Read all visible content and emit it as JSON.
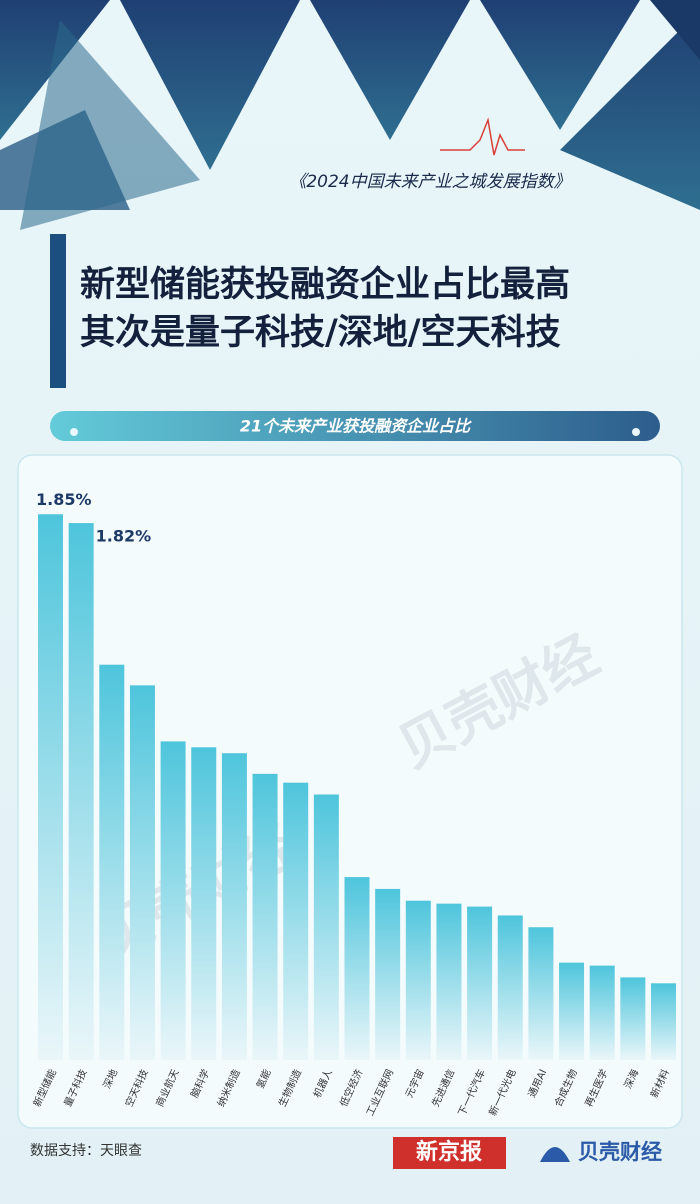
{
  "header": "《2024中国未来产业之城发展指数》",
  "title_lines": [
    "新型储能获投融资企业占比最高",
    "其次是量子科技/深地/空天科技"
  ],
  "chart_data": {
    "type": "bar",
    "title": "21个未来产业获投融资企业占比",
    "categories": [
      "新型储能",
      "量子科技",
      "深地",
      "空天科技",
      "商业航天",
      "脑科学",
      "纳米制造",
      "氢能",
      "生物制造",
      "机器人",
      "低空经济",
      "工业互联网",
      "元宇宙",
      "先进通信",
      "下一代汽车",
      "新一代光电",
      "通用AI",
      "合成生物",
      "再生医学",
      "深海",
      "新材料"
    ],
    "values": [
      1.85,
      1.82,
      1.34,
      1.27,
      1.08,
      1.06,
      1.04,
      0.97,
      0.94,
      0.9,
      0.62,
      0.58,
      0.54,
      0.53,
      0.52,
      0.49,
      0.45,
      0.33,
      0.32,
      0.28,
      0.26
    ],
    "value_labels": [
      "1.85%",
      "1.82%",
      null,
      null,
      null,
      null,
      null,
      null,
      null,
      null,
      null,
      null,
      null,
      null,
      null,
      null,
      null,
      null,
      null,
      null,
      null
    ],
    "color": "#4ec5dc"
  },
  "watermark": "贝壳财经",
  "source": "数据支持：天眼查",
  "logos": [
    "新京报",
    "贝壳财经"
  ]
}
